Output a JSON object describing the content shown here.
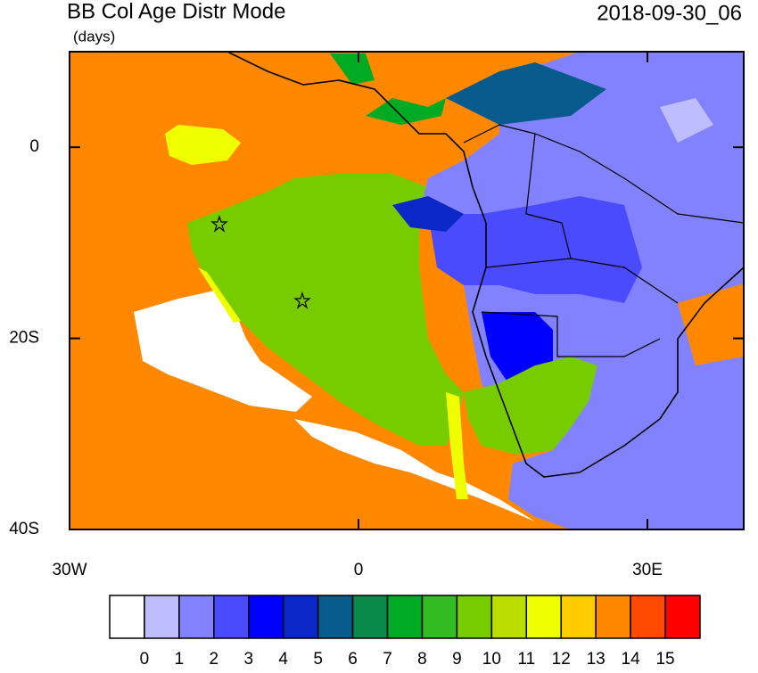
{
  "header": {
    "title": "BB Col Age Distr Mode",
    "units": "(days)",
    "date": "2018-09-30_06"
  },
  "map": {
    "lon_range": [
      -30,
      40
    ],
    "lat_range": [
      -40,
      10
    ],
    "xticks": [
      {
        "value": -30,
        "label": "30W"
      },
      0,
      {
        "value": 30,
        "label": "30E"
      }
    ],
    "yticks": [
      0,
      {
        "value": -20,
        "label": "20S"
      },
      {
        "value": -40,
        "label": "40S"
      }
    ]
  },
  "colorbar": {
    "colors": [
      "#ffffff",
      "#bdbdff",
      "#8282ff",
      "#4a4aff",
      "#0000ff",
      "#0a28c8",
      "#075a8c",
      "#0a8a4a",
      "#00aa22",
      "#33bb22",
      "#77cc00",
      "#bbdd00",
      "#f0ff00",
      "#ffcc00",
      "#ff8800",
      "#ff4a00",
      "#ff0000"
    ],
    "labels": [
      0,
      1,
      2,
      3,
      4,
      5,
      6,
      7,
      8,
      9,
      10,
      11,
      12,
      13,
      14,
      15
    ]
  }
}
